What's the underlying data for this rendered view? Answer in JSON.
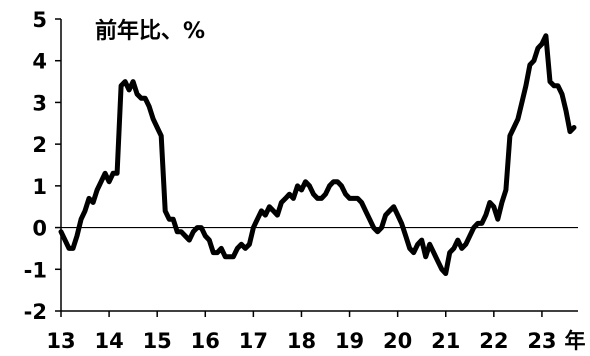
{
  "chart_data": {
    "type": "line",
    "title": "前年比、%",
    "xlabel": "",
    "ylabel": "",
    "ylim": [
      -2,
      5
    ],
    "xlim": [
      2013,
      2023.75
    ],
    "grid": false,
    "legend": "none",
    "x_unit_suffix": "年",
    "x_ticks": [
      2013,
      2014,
      2015,
      2016,
      2017,
      2018,
      2019,
      2020,
      2021,
      2022,
      2023
    ],
    "x_tick_labels": [
      "13",
      "14",
      "15",
      "16",
      "17",
      "18",
      "19",
      "20",
      "21",
      "22",
      "23"
    ],
    "y_ticks": [
      -2,
      -1,
      0,
      1,
      2,
      3,
      4,
      5
    ],
    "y_tick_labels": [
      "-2",
      "-1",
      "0",
      "1",
      "2",
      "3",
      "4",
      "5"
    ],
    "reference_line": 0,
    "colors": {
      "line": "#000000",
      "axis": "#000000",
      "background": "#ffffff"
    },
    "series": [
      {
        "x": [
          2013.0,
          2013.083,
          2013.167,
          2013.25,
          2013.333,
          2013.417,
          2013.5,
          2013.583,
          2013.667,
          2013.75,
          2013.833,
          2013.917,
          2014.0,
          2014.083,
          2014.167,
          2014.25,
          2014.333,
          2014.417,
          2014.5,
          2014.583,
          2014.667,
          2014.75,
          2014.833,
          2014.917,
          2015.0,
          2015.083,
          2015.167,
          2015.25,
          2015.333,
          2015.417,
          2015.5,
          2015.583,
          2015.667,
          2015.75,
          2015.833,
          2015.917,
          2016.0,
          2016.083,
          2016.167,
          2016.25,
          2016.333,
          2016.417,
          2016.5,
          2016.583,
          2016.667,
          2016.75,
          2016.833,
          2016.917,
          2017.0,
          2017.083,
          2017.167,
          2017.25,
          2017.333,
          2017.417,
          2017.5,
          2017.583,
          2017.667,
          2017.75,
          2017.833,
          2017.917,
          2018.0,
          2018.083,
          2018.167,
          2018.25,
          2018.333,
          2018.417,
          2018.5,
          2018.583,
          2018.667,
          2018.75,
          2018.833,
          2018.917,
          2019.0,
          2019.083,
          2019.167,
          2019.25,
          2019.333,
          2019.417,
          2019.5,
          2019.583,
          2019.667,
          2019.75,
          2019.833,
          2019.917,
          2020.0,
          2020.083,
          2020.167,
          2020.25,
          2020.333,
          2020.417,
          2020.5,
          2020.583,
          2020.667,
          2020.75,
          2020.833,
          2020.917,
          2021.0,
          2021.083,
          2021.167,
          2021.25,
          2021.333,
          2021.417,
          2021.5,
          2021.583,
          2021.667,
          2021.75,
          2021.833,
          2021.917,
          2022.0,
          2022.083,
          2022.167,
          2022.25,
          2022.333,
          2022.417,
          2022.5,
          2022.583,
          2022.667,
          2022.75,
          2022.833,
          2022.917,
          2023.0,
          2023.083,
          2023.167,
          2023.25,
          2023.333,
          2023.417,
          2023.5,
          2023.583,
          2023.667
        ],
        "values": [
          -0.1,
          -0.3,
          -0.5,
          -0.5,
          -0.2,
          0.2,
          0.4,
          0.7,
          0.6,
          0.9,
          1.1,
          1.3,
          1.1,
          1.3,
          1.3,
          3.4,
          3.5,
          3.3,
          3.5,
          3.2,
          3.1,
          3.1,
          2.9,
          2.6,
          2.4,
          2.2,
          0.4,
          0.2,
          0.2,
          -0.1,
          -0.1,
          -0.2,
          -0.3,
          -0.1,
          0.0,
          0.0,
          -0.2,
          -0.3,
          -0.6,
          -0.6,
          -0.5,
          -0.7,
          -0.7,
          -0.7,
          -0.5,
          -0.4,
          -0.5,
          -0.4,
          0.0,
          0.2,
          0.4,
          0.3,
          0.5,
          0.4,
          0.3,
          0.6,
          0.7,
          0.8,
          0.7,
          1.0,
          0.9,
          1.1,
          1.0,
          0.8,
          0.7,
          0.7,
          0.8,
          1.0,
          1.1,
          1.1,
          1.0,
          0.8,
          0.7,
          0.7,
          0.7,
          0.6,
          0.4,
          0.2,
          0.0,
          -0.1,
          0.0,
          0.3,
          0.4,
          0.5,
          0.3,
          0.1,
          -0.2,
          -0.5,
          -0.6,
          -0.4,
          -0.3,
          -0.7,
          -0.4,
          -0.6,
          -0.8,
          -1.0,
          -1.1,
          -0.6,
          -0.5,
          -0.3,
          -0.5,
          -0.4,
          -0.2,
          0.0,
          0.1,
          0.1,
          0.3,
          0.6,
          0.5,
          0.2,
          0.6,
          0.9,
          2.2,
          2.4,
          2.6,
          3.0,
          3.4,
          3.9,
          4.0,
          4.3,
          4.4,
          4.6,
          3.5,
          3.4,
          3.4,
          3.2,
          2.8,
          2.3,
          2.4
        ]
      }
    ]
  }
}
